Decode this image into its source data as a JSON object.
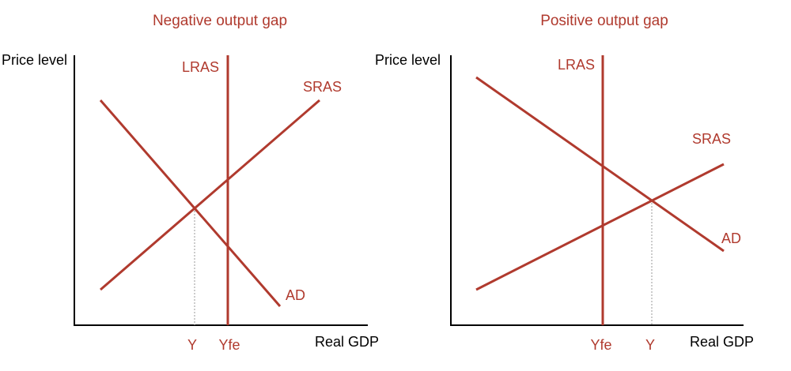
{
  "colors": {
    "curve": "#b03a2e",
    "axis": "#000000",
    "guide": "#999999",
    "background": "#ffffff"
  },
  "left_panel": {
    "title": "Negative output gap",
    "y_axis_label": "Price level",
    "x_axis_label": "Real GDP",
    "curves": {
      "lras": "LRAS",
      "sras": "SRAS",
      "ad": "AD"
    },
    "x_ticks": {
      "y": "Y",
      "yfe": "Yfe"
    }
  },
  "right_panel": {
    "title": "Positive output gap",
    "y_axis_label": "Price level",
    "x_axis_label": "Real GDP",
    "curves": {
      "lras": "LRAS",
      "sras": "SRAS",
      "ad": "AD"
    },
    "x_ticks": {
      "yfe": "Yfe",
      "y": "Y"
    }
  }
}
